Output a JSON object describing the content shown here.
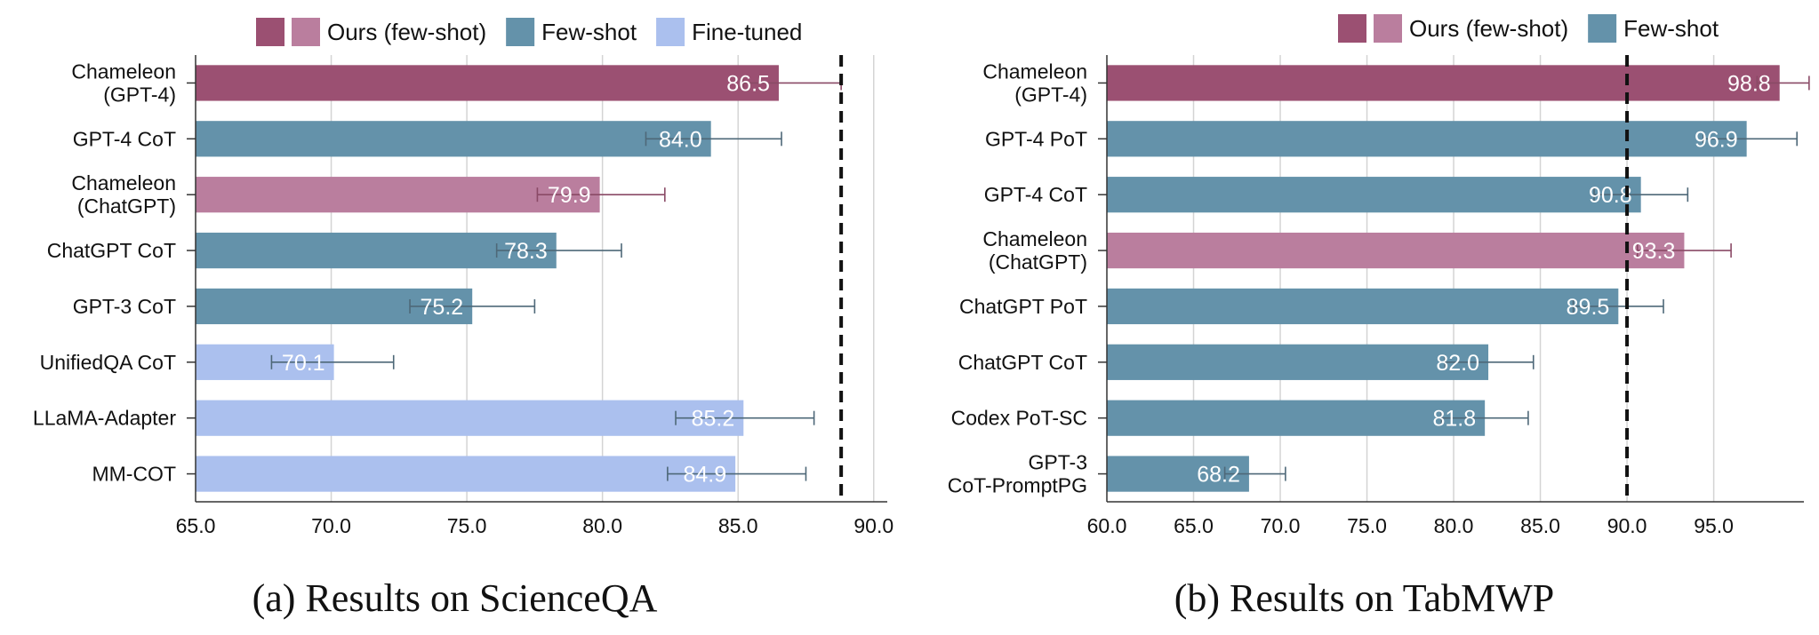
{
  "colors": {
    "ours_dark": "#9B5072",
    "ours_light": "#BA7E9E",
    "fewshot": "#6492AA",
    "finetuned": "#ABC0EE",
    "grid": "#d4d4d4",
    "axis": "#333333",
    "text": "#111111"
  },
  "chart_data": [
    {
      "type": "bar",
      "orientation": "horizontal",
      "caption": "(a) Results on ScienceQA",
      "categories": [
        "Chameleon\n(GPT-4)",
        "GPT-4 CoT",
        "Chameleon\n(ChatGPT)",
        "ChatGPT CoT",
        "GPT-3 CoT",
        "UnifiedQA CoT",
        "LLaMA-Adapter",
        "MM-COT"
      ],
      "values": [
        86.5,
        84.0,
        79.9,
        78.3,
        75.2,
        70.1,
        85.2,
        84.9
      ],
      "value_labels": [
        "86.5",
        "84.0",
        "79.9",
        "78.3",
        "75.2",
        "70.1",
        "85.2",
        "84.9"
      ],
      "groups": [
        "ours_dark",
        "fewshot",
        "ours_light",
        "fewshot",
        "fewshot",
        "finetuned",
        "finetuned",
        "finetuned"
      ],
      "error_low": [
        85.2,
        81.6,
        77.6,
        76.1,
        72.9,
        67.8,
        82.7,
        82.4
      ],
      "error_high": [
        88.8,
        86.6,
        82.3,
        80.7,
        77.5,
        72.3,
        87.8,
        87.5
      ],
      "xlim": [
        65,
        90.5
      ],
      "xticks": [
        "65.0",
        "70.0",
        "75.0",
        "80.0",
        "85.0",
        "90.0"
      ],
      "xtick_values": [
        65,
        70,
        75,
        80,
        85,
        90
      ],
      "reference_line": 88.8,
      "grid": true,
      "legend_position": "top",
      "legend": [
        {
          "label": "Ours (few-shot)",
          "colors": [
            "ours_dark",
            "ours_light"
          ]
        },
        {
          "label": "Few-shot",
          "colors": [
            "fewshot"
          ]
        },
        {
          "label": "Fine-tuned",
          "colors": [
            "finetuned"
          ]
        }
      ]
    },
    {
      "type": "bar",
      "orientation": "horizontal",
      "caption": "(b) Results on TabMWP",
      "categories": [
        "Chameleon\n(GPT-4)",
        "GPT-4 PoT",
        "GPT-4 CoT",
        "Chameleon\n(ChatGPT)",
        "ChatGPT PoT",
        "ChatGPT CoT",
        "Codex PoT-SC",
        "GPT-3\nCoT-PromptPG"
      ],
      "values": [
        98.8,
        96.9,
        90.8,
        93.3,
        89.5,
        82.0,
        81.8,
        68.2
      ],
      "value_labels": [
        "98.8",
        "96.9",
        "90.8",
        "93.3",
        "89.5",
        "82.0",
        "81.8",
        "68.2"
      ],
      "groups": [
        "ours_dark",
        "fewshot",
        "fewshot",
        "ours_light",
        "fewshot",
        "fewshot",
        "fewshot",
        "fewshot"
      ],
      "error_low": [
        97.5,
        94.4,
        88.1,
        90.6,
        86.9,
        79.5,
        79.3,
        66.8
      ],
      "error_high": [
        100.5,
        99.8,
        93.5,
        96.0,
        92.1,
        84.6,
        84.3,
        70.3
      ],
      "xlim": [
        60,
        100.2
      ],
      "xticks": [
        "60.0",
        "65.0",
        "70.0",
        "75.0",
        "80.0",
        "85.0",
        "90.0",
        "95.0"
      ],
      "xtick_values": [
        60,
        65,
        70,
        75,
        80,
        85,
        90,
        95
      ],
      "reference_line": 90.0,
      "grid": true,
      "legend_position": "top",
      "legend": [
        {
          "label": "Ours (few-shot)",
          "colors": [
            "ours_dark",
            "ours_light"
          ]
        },
        {
          "label": "Few-shot",
          "colors": [
            "fewshot"
          ]
        }
      ]
    }
  ]
}
